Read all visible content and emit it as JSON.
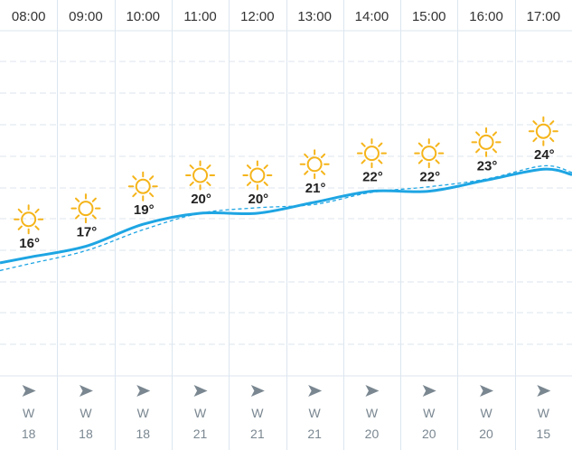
{
  "forecast": {
    "hours": [
      "08:00",
      "09:00",
      "10:00",
      "11:00",
      "12:00",
      "13:00",
      "14:00",
      "15:00",
      "16:00",
      "17:00"
    ],
    "temperatures": [
      "16°",
      "17°",
      "19°",
      "20°",
      "20°",
      "21°",
      "22°",
      "22°",
      "23°",
      "24°"
    ],
    "temperature_values": [
      16,
      17,
      19,
      20,
      20,
      21,
      22,
      22,
      23,
      24
    ],
    "feels_like_values": [
      15.4,
      16.6,
      18.5,
      20.0,
      20.5,
      20.8,
      21.9,
      22.4,
      23.1,
      24.3
    ],
    "weather_icons": [
      "sun-icon",
      "sun-icon",
      "sun-icon",
      "sun-icon",
      "sun-icon",
      "sun-icon",
      "sun-icon",
      "sun-icon",
      "sun-icon",
      "sun-icon"
    ],
    "wind_directions": [
      "W",
      "W",
      "W",
      "W",
      "W",
      "W",
      "W",
      "W",
      "W",
      "W"
    ],
    "wind_speeds": [
      "18",
      "18",
      "18",
      "21",
      "21",
      "21",
      "20",
      "20",
      "20",
      "15"
    ],
    "wind_icon": "arrow-east-icon"
  },
  "colors": {
    "line": "#1ea5e3",
    "sun": "#f5b41a",
    "grid": "#dce6ef",
    "wind": "#7a8791"
  }
}
